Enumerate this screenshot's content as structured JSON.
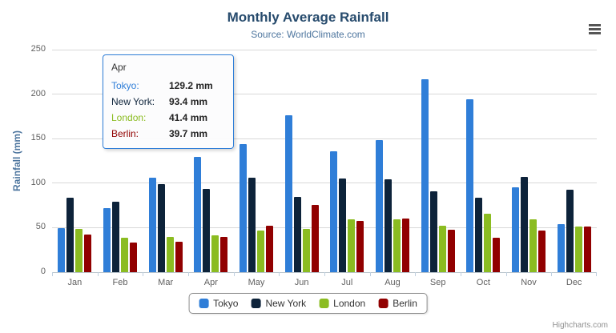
{
  "chart": {
    "title": "Monthly Average Rainfall",
    "subtitle": "Source: WorldClimate.com",
    "ylabel": "Rainfall (mm)",
    "credits": "Highcharts.com"
  },
  "chart_data": {
    "type": "bar",
    "title": "Monthly Average Rainfall",
    "subtitle": "Source: WorldClimate.com",
    "xlabel": "",
    "ylabel": "Rainfall (mm)",
    "ylim": [
      0,
      250
    ],
    "yticks": [
      0,
      50,
      100,
      150,
      200,
      250
    ],
    "grid": true,
    "legend_position": "bottom",
    "categories": [
      "Jan",
      "Feb",
      "Mar",
      "Apr",
      "May",
      "Jun",
      "Jul",
      "Aug",
      "Sep",
      "Oct",
      "Nov",
      "Dec"
    ],
    "series": [
      {
        "name": "Tokyo",
        "color": "#2f7ed8",
        "values": [
          49.9,
          71.5,
          106.4,
          129.2,
          144.0,
          176.0,
          135.6,
          148.5,
          216.4,
          194.1,
          95.6,
          54.4
        ]
      },
      {
        "name": "New York",
        "color": "#0d233a",
        "values": [
          83.6,
          78.8,
          98.5,
          93.4,
          106.0,
          84.5,
          105.0,
          104.3,
          91.2,
          83.5,
          106.6,
          92.3
        ]
      },
      {
        "name": "London",
        "color": "#8bbc21",
        "values": [
          48.9,
          38.8,
          39.3,
          41.4,
          47.0,
          48.3,
          59.0,
          59.6,
          52.4,
          65.2,
          59.3,
          51.2
        ]
      },
      {
        "name": "Berlin",
        "color": "#910000",
        "values": [
          42.4,
          33.2,
          34.5,
          39.7,
          52.6,
          75.5,
          57.4,
          60.4,
          47.6,
          39.1,
          46.8,
          51.1
        ]
      }
    ]
  },
  "tooltip": {
    "header": "Apr",
    "rows": [
      {
        "name": "Tokyo:",
        "value": "129.2 mm",
        "color": "#2f7ed8"
      },
      {
        "name": "New York:",
        "value": "93.4 mm",
        "color": "#0d233a"
      },
      {
        "name": "London:",
        "value": "41.4 mm",
        "color": "#8bbc21"
      },
      {
        "name": "Berlin:",
        "value": "39.7 mm",
        "color": "#910000"
      }
    ]
  },
  "legend": {
    "items": [
      {
        "label": "Tokyo",
        "color": "#2f7ed8"
      },
      {
        "label": "New York",
        "color": "#0d233a"
      },
      {
        "label": "London",
        "color": "#8bbc21"
      },
      {
        "label": "Berlin",
        "color": "#910000"
      }
    ]
  }
}
